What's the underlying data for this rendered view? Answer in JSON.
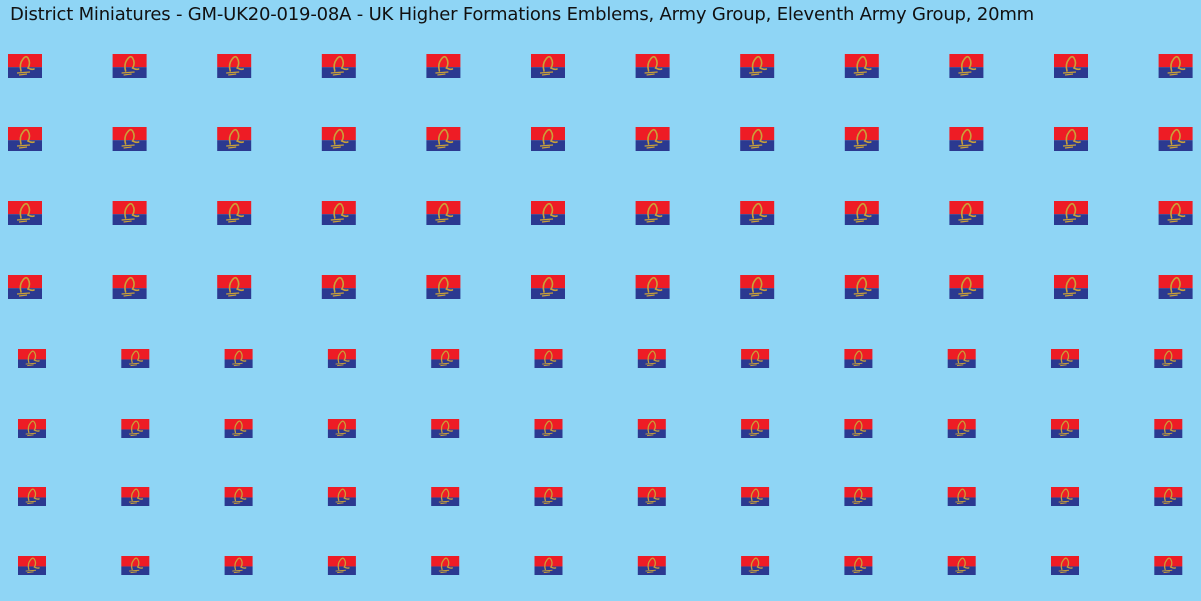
{
  "header": {
    "title": "District Miniatures - GM-UK20-019-08A - UK Higher Formations Emblems, Army Group, Eleventh Army Group, 20mm"
  }
}
